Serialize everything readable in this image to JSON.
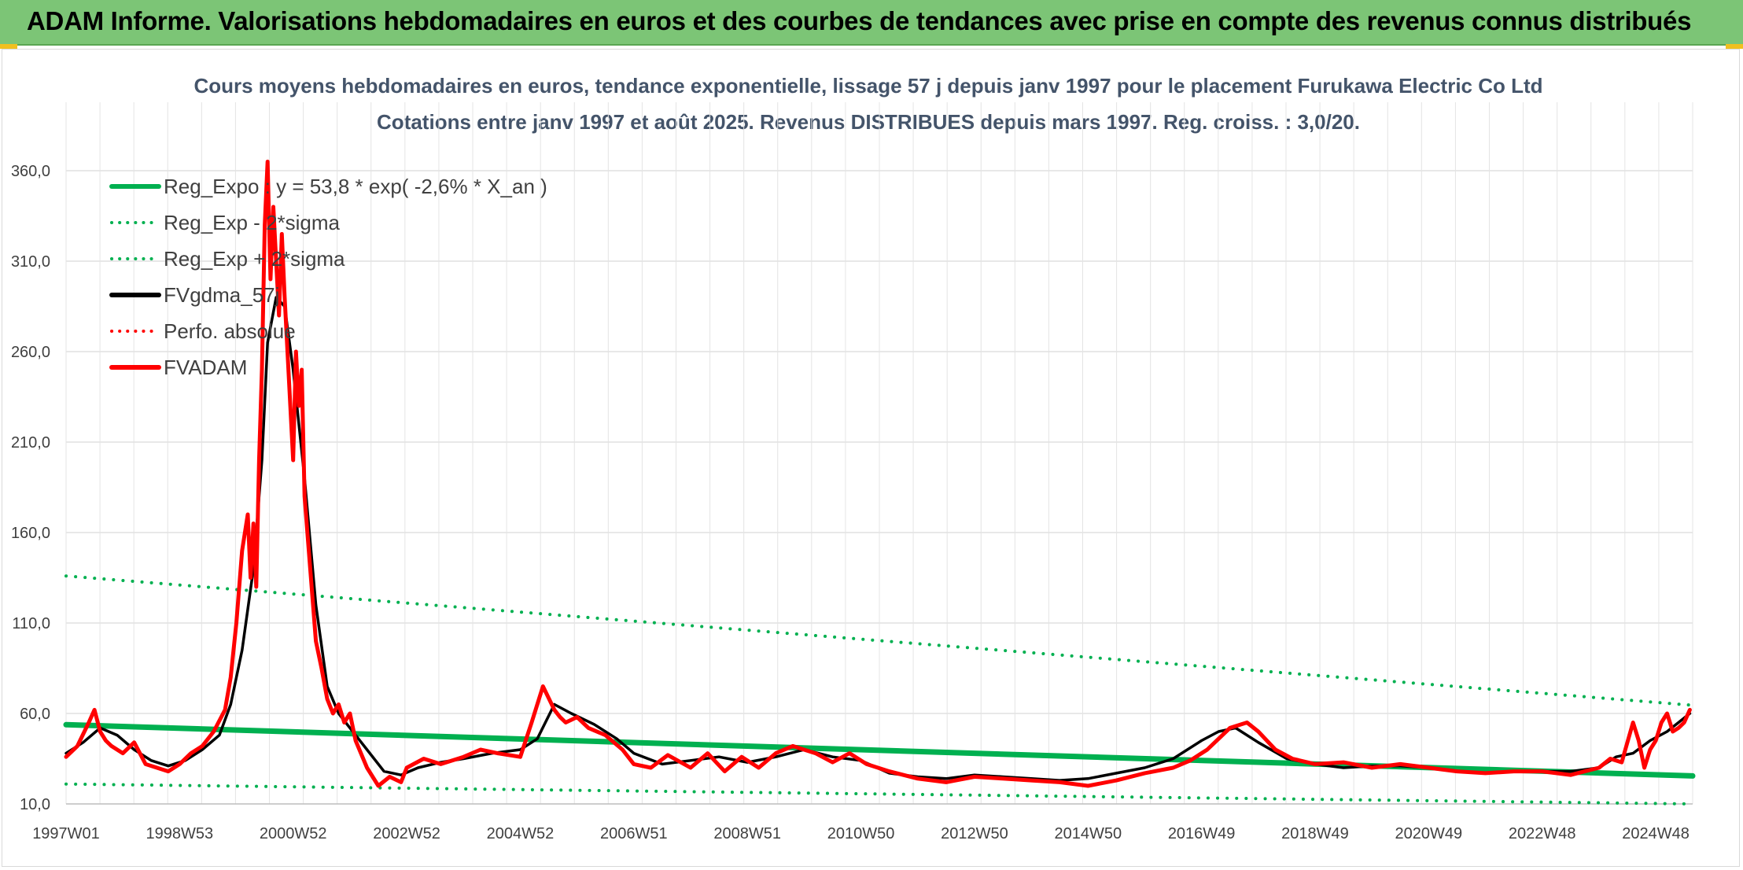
{
  "banner": {
    "title": "ADAM Informe. Valorisations hebdomadaires en euros et des courbes de tendances avec prise en compte des revenus connus distribués"
  },
  "chart_data": {
    "type": "line",
    "title": "Cours moyens hebdomadaires en euros, tendance exponentielle, lissage 57 j depuis janv 1997 pour le placement Furukawa Electric Co Ltd",
    "subtitle": "Cotations entre janv 1997 et août 2025. Revenus DISTRIBUES depuis mars 1997. Reg. croiss. : 3,0/20.",
    "xlabel": "",
    "ylabel": "",
    "ylim": [
      10,
      370
    ],
    "xlim": [
      1997.0,
      2025.65
    ],
    "y_ticks": [
      "10,0",
      "60,0",
      "110,0",
      "160,0",
      "210,0",
      "260,0",
      "310,0",
      "360,0"
    ],
    "y_tick_values": [
      10,
      60,
      110,
      160,
      210,
      260,
      310,
      360
    ],
    "x_ticks": [
      "1997W01",
      "1998W53",
      "2000W52",
      "2002W52",
      "2004W52",
      "2006W51",
      "2008W51",
      "2010W50",
      "2012W50",
      "2014W50",
      "2016W49",
      "2018W49",
      "2020W49",
      "2022W48",
      "2024W48"
    ],
    "x_tick_values": [
      1997.0,
      1999.0,
      2001.0,
      2003.0,
      2005.0,
      2007.0,
      2009.0,
      2011.0,
      2013.0,
      2015.0,
      2017.0,
      2019.0,
      2021.0,
      2023.0,
      2025.0
    ],
    "grid": true,
    "legend_position": "top-left",
    "series": [
      {
        "name": "Reg_Expo : y = 53,8 * exp( -2,6% *  X_an )",
        "style": "solid",
        "color": "#00b050",
        "x": [
          1997.0,
          2025.65
        ],
        "y": [
          53.8,
          25.5
        ]
      },
      {
        "name": "Reg_Exp - 2*sigma",
        "style": "dotted",
        "color": "#00b050",
        "x": [
          1997.0,
          2025.65
        ],
        "y": [
          21.0,
          10.0
        ]
      },
      {
        "name": "Reg_Exp + 2*sigma",
        "style": "dotted",
        "color": "#00b050",
        "x": [
          1997.0,
          2025.65
        ],
        "y": [
          136.0,
          64.5
        ]
      },
      {
        "name": "FVgdma_57j",
        "style": "solid",
        "color": "#000000",
        "x": [
          1997.0,
          1997.3,
          1997.6,
          1997.9,
          1998.2,
          1998.5,
          1998.8,
          1999.1,
          1999.4,
          1999.7,
          1999.9,
          2000.1,
          2000.3,
          2000.45,
          2000.55,
          2000.7,
          2000.85,
          2001.0,
          2001.2,
          2001.4,
          2001.6,
          2001.8,
          2002.0,
          2002.3,
          2002.6,
          2002.9,
          2003.2,
          2003.6,
          2004.0,
          2004.5,
          2005.0,
          2005.3,
          2005.6,
          2005.9,
          2006.3,
          2006.7,
          2007.0,
          2007.5,
          2008.0,
          2008.5,
          2009.0,
          2009.5,
          2010.0,
          2010.5,
          2011.0,
          2011.5,
          2012.0,
          2012.5,
          2013.0,
          2013.5,
          2014.0,
          2014.5,
          2015.0,
          2015.5,
          2016.0,
          2016.5,
          2017.0,
          2017.3,
          2017.6,
          2018.0,
          2018.5,
          2019.0,
          2019.5,
          2020.0,
          2020.5,
          2021.0,
          2021.5,
          2022.0,
          2022.5,
          2023.0,
          2023.5,
          2024.0,
          2024.3,
          2024.6,
          2024.9,
          2025.2,
          2025.4,
          2025.6
        ],
        "y": [
          38,
          44,
          52,
          48,
          40,
          34,
          31,
          34,
          40,
          48,
          65,
          95,
          140,
          200,
          265,
          290,
          285,
          250,
          190,
          120,
          75,
          60,
          52,
          40,
          28,
          26,
          30,
          33,
          35,
          38,
          40,
          46,
          65,
          60,
          54,
          46,
          38,
          32,
          34,
          36,
          33,
          36,
          40,
          36,
          34,
          27,
          25,
          24,
          26,
          25,
          24,
          23,
          24,
          27,
          30,
          35,
          45,
          50,
          52,
          44,
          35,
          32,
          30,
          31,
          31,
          30,
          28,
          27,
          28,
          28,
          28,
          30,
          36,
          38,
          45,
          50,
          55,
          60
        ]
      },
      {
        "name": "Perfo. absolue",
        "style": "dotted",
        "color": "#ff0000",
        "x": [],
        "y": []
      },
      {
        "name": "FVADAM",
        "style": "solid",
        "color": "#ff0000",
        "x": [
          1997.0,
          1997.2,
          1997.4,
          1997.5,
          1997.6,
          1997.7,
          1997.8,
          1998.0,
          1998.2,
          1998.4,
          1998.6,
          1998.8,
          1999.0,
          1999.2,
          1999.4,
          1999.6,
          1999.8,
          1999.9,
          2000.0,
          2000.1,
          2000.2,
          2000.25,
          2000.3,
          2000.35,
          2000.4,
          2000.45,
          2000.5,
          2000.55,
          2000.6,
          2000.65,
          2000.7,
          2000.75,
          2000.8,
          2000.85,
          2000.9,
          2000.95,
          2001.0,
          2001.05,
          2001.1,
          2001.15,
          2001.2,
          2001.3,
          2001.4,
          2001.5,
          2001.6,
          2001.7,
          2001.8,
          2001.9,
          2002.0,
          2002.1,
          2002.3,
          2002.5,
          2002.7,
          2002.9,
          2003.0,
          2003.3,
          2003.6,
          2004.0,
          2004.3,
          2004.6,
          2005.0,
          2005.2,
          2005.4,
          2005.6,
          2005.7,
          2005.8,
          2006.0,
          2006.2,
          2006.5,
          2006.8,
          2007.0,
          2007.3,
          2007.6,
          2008.0,
          2008.3,
          2008.6,
          2008.9,
          2009.2,
          2009.5,
          2009.8,
          2010.2,
          2010.5,
          2010.8,
          2011.1,
          2011.5,
          2012.0,
          2012.5,
          2013.0,
          2013.5,
          2014.0,
          2014.5,
          2015.0,
          2015.5,
          2016.0,
          2016.5,
          2016.8,
          2017.1,
          2017.3,
          2017.5,
          2017.8,
          2018.0,
          2018.3,
          2018.6,
          2019.0,
          2019.5,
          2020.0,
          2020.5,
          2021.0,
          2021.5,
          2022.0,
          2022.5,
          2023.0,
          2023.5,
          2024.0,
          2024.2,
          2024.4,
          2024.6,
          2024.7,
          2024.8,
          2024.9,
          2025.0,
          2025.1,
          2025.2,
          2025.3,
          2025.4,
          2025.5,
          2025.6
        ],
        "y": [
          36,
          42,
          55,
          62,
          50,
          45,
          42,
          38,
          44,
          32,
          30,
          28,
          32,
          38,
          42,
          50,
          62,
          80,
          110,
          150,
          170,
          135,
          165,
          130,
          200,
          250,
          330,
          365,
          300,
          340,
          310,
          280,
          325,
          290,
          260,
          230,
          200,
          260,
          230,
          250,
          180,
          140,
          100,
          85,
          68,
          60,
          65,
          55,
          60,
          45,
          30,
          20,
          25,
          22,
          30,
          35,
          32,
          36,
          40,
          38,
          36,
          55,
          75,
          62,
          58,
          55,
          58,
          52,
          48,
          40,
          32,
          30,
          37,
          30,
          38,
          28,
          36,
          30,
          38,
          42,
          38,
          33,
          38,
          32,
          28,
          24,
          22,
          25,
          24,
          23,
          22,
          20,
          23,
          27,
          30,
          34,
          40,
          46,
          52,
          55,
          50,
          40,
          35,
          32,
          33,
          30,
          32,
          30,
          28,
          27,
          28,
          28,
          26,
          30,
          35,
          33,
          55,
          45,
          30,
          40,
          45,
          55,
          60,
          50,
          52,
          55,
          62
        ]
      }
    ]
  }
}
